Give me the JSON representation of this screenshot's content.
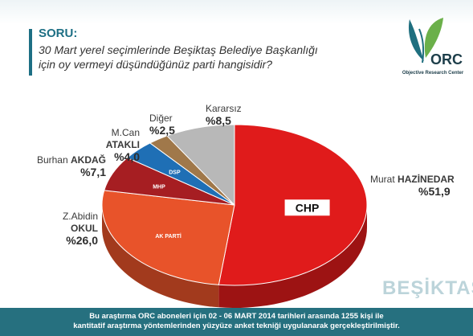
{
  "question": {
    "title": "SORU:",
    "line1": "30 Mart yerel seçimlerinde Beşiktaş Belediye Başkanlığı",
    "line2": "için oy vermeyi düşündüğünüz parti hangisidir?"
  },
  "logo": {
    "text": "ORC",
    "caption": "Objective Research Center"
  },
  "brand": "BEŞİKTAŞ",
  "footer": {
    "line1": "Bu araştırma ORC aboneleri için 02 - 06 MART 2014 tarihleri arasında  1255 kişi ile",
    "line2": "kantitatif araştırma yöntemlerinden yüzyüze anket tekniği  uygulanarak gerçekleştirilmiştir."
  },
  "chart_data": {
    "type": "pie",
    "title": "",
    "slices": [
      {
        "first": "Murat",
        "name": "HAZİNEDAR",
        "pct_text": "%51,9",
        "value": 51.9,
        "color": "#e01b1b",
        "party": "CHP"
      },
      {
        "first": "Z.Abidin",
        "name": "OKUL",
        "pct_text": "%26,0",
        "value": 26.0,
        "color": "#e8532a",
        "party": "AK PARTİ"
      },
      {
        "first": "Burhan",
        "name": "AKDAĞ",
        "pct_text": "%7,1",
        "value": 7.1,
        "color": "#a61e22",
        "party": "MHP"
      },
      {
        "first": "M.Can",
        "name": "ATAKLI",
        "pct_text": "%4,0",
        "value": 4.0,
        "color": "#1f6fb5",
        "party": "DSP"
      },
      {
        "first": "",
        "name": "Diğer",
        "pct_text": "%2,5",
        "value": 2.5,
        "color": "#a0784a",
        "party": ""
      },
      {
        "first": "",
        "name": "Kararsız",
        "pct_text": "%8,5",
        "value": 8.5,
        "color": "#b8b8b8",
        "party": ""
      }
    ]
  }
}
